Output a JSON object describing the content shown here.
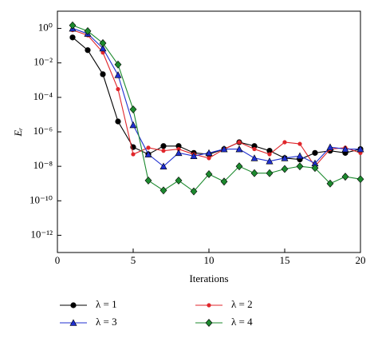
{
  "chart_data": {
    "type": "line",
    "xlabel": "Iterations",
    "ylabel": "Eᵣ",
    "log_y": true,
    "x": [
      1,
      2,
      3,
      4,
      5,
      6,
      7,
      8,
      9,
      10,
      11,
      12,
      13,
      14,
      15,
      16,
      17,
      18,
      19,
      20
    ],
    "xlim": [
      0,
      20
    ],
    "xticks": [
      0,
      5,
      10,
      15,
      20
    ],
    "ylim": [
      1e-13,
      10
    ],
    "yticks": [
      {
        "value": 1,
        "label": "10⁰"
      },
      {
        "value": 0.01,
        "label": "10⁻²"
      },
      {
        "value": 0.0001,
        "label": "10⁻⁴"
      },
      {
        "value": 1e-06,
        "label": "10⁻⁶"
      },
      {
        "value": 1e-08,
        "label": "10⁻⁸"
      },
      {
        "value": 1e-10,
        "label": "10⁻¹⁰"
      },
      {
        "value": 1e-12,
        "label": "10⁻¹²"
      }
    ],
    "legend": "bottom",
    "series": [
      {
        "name": "λ = 1",
        "color": "#000000",
        "marker": "circle",
        "values": [
          0.3,
          0.055,
          0.0022,
          4e-06,
          1.3e-07,
          5e-08,
          1.5e-07,
          1.5e-07,
          6e-08,
          5e-08,
          1e-07,
          2.5e-07,
          1.5e-07,
          8e-08,
          3e-08,
          2.5e-08,
          6e-08,
          8e-08,
          6e-08,
          1e-07
        ]
      },
      {
        "name": "λ = 2",
        "color": "#e0262b",
        "marker": "star",
        "values": [
          0.8,
          0.4,
          0.04,
          0.0003,
          5e-08,
          1.2e-07,
          8e-08,
          1e-07,
          5e-08,
          3e-08,
          1e-07,
          2.5e-07,
          1e-07,
          5e-08,
          2.5e-07,
          2e-07,
          1e-08,
          1e-07,
          1.2e-07,
          6e-08
        ]
      },
      {
        "name": "λ = 3",
        "color": "#1f2fd0",
        "marker": "triangle",
        "values": [
          1.0,
          0.5,
          0.07,
          0.002,
          2.5e-06,
          5e-08,
          1e-08,
          6e-08,
          4e-08,
          6e-08,
          1e-07,
          1e-07,
          3e-08,
          2e-08,
          3e-08,
          4e-08,
          1.5e-08,
          1.3e-07,
          1e-07,
          1e-07
        ]
      },
      {
        "name": "λ = 4",
        "color": "#1c8a2e",
        "marker": "diamond",
        "values": [
          1.5,
          0.7,
          0.14,
          0.008,
          2e-05,
          1.5e-09,
          4e-10,
          1.5e-09,
          3.5e-10,
          3.5e-09,
          1.3e-09,
          1e-08,
          4e-09,
          4e-09,
          7e-09,
          1e-08,
          8e-09,
          1e-09,
          2.5e-09,
          1.8e-09
        ]
      }
    ]
  }
}
